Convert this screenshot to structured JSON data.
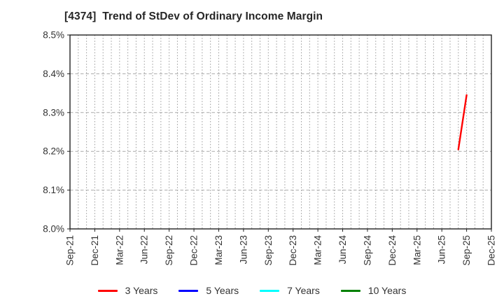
{
  "header": {
    "title": "[4374]  Trend of StDev of Ordinary Income Margin"
  },
  "chart_data": {
    "type": "line",
    "title": "[4374]  Trend of StDev of Ordinary Income Margin",
    "xlabel": "",
    "ylabel": "",
    "grid": "on",
    "legend_position": "bottom-center",
    "y_axis": {
      "min": 8.0,
      "max": 8.5,
      "unit": "%",
      "tick_values": [
        8.0,
        8.1,
        8.2,
        8.3,
        8.4,
        8.5
      ],
      "tick_labels": [
        "8.0%",
        "8.1%",
        "8.2%",
        "8.3%",
        "8.4%",
        "8.5%"
      ]
    },
    "x_axis": {
      "tick_labels": [
        "Sep-21",
        "Dec-21",
        "Mar-22",
        "Jun-22",
        "Sep-22",
        "Dec-22",
        "Mar-23",
        "Jun-23",
        "Sep-23",
        "Dec-23",
        "Mar-24",
        "Jun-24",
        "Sep-24",
        "Dec-24",
        "Mar-25",
        "Jun-25",
        "Sep-25",
        "Dec-25"
      ],
      "months_between_ticks": 3,
      "total_month_intervals": 51,
      "minor_grid": "monthly-dotted"
    },
    "series": [
      {
        "name": "3 Years",
        "color": "#ff0000",
        "points": [
          {
            "label": "Aug-25",
            "month_index": 47,
            "value": 8.205
          },
          {
            "label": "Sep-25",
            "month_index": 48,
            "value": 8.345
          }
        ]
      },
      {
        "name": "5 Years",
        "color": "#0000ff",
        "points": []
      },
      {
        "name": "7 Years",
        "color": "#00ffff",
        "points": []
      },
      {
        "name": "10 Years",
        "color": "#008000",
        "points": []
      }
    ],
    "colors": {
      "plot_border": "#222222",
      "grid_vertical": "#999999",
      "grid_horizontal": "#aaaaaa",
      "tick_label": "#333333",
      "title": "#262626",
      "background": "#ffffff"
    }
  }
}
